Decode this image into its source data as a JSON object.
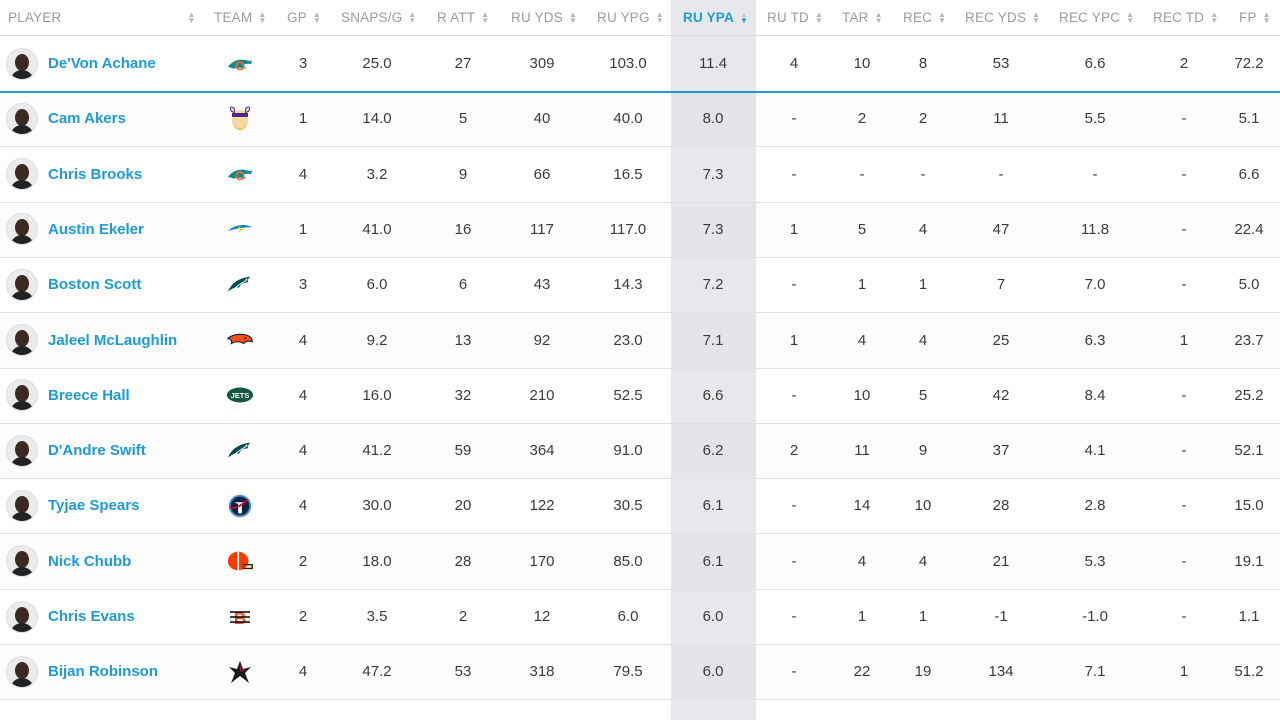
{
  "columns": [
    {
      "key": "player",
      "label": "PLAYER"
    },
    {
      "key": "team",
      "label": "TEAM"
    },
    {
      "key": "gp",
      "label": "GP"
    },
    {
      "key": "snaps",
      "label": "SNAPS/G"
    },
    {
      "key": "ratt",
      "label": "R ATT"
    },
    {
      "key": "ruyds",
      "label": "RU YDS"
    },
    {
      "key": "ruypg",
      "label": "RU YPG"
    },
    {
      "key": "ruypa",
      "label": "RU YPA",
      "active": true
    },
    {
      "key": "rutd",
      "label": "RU TD"
    },
    {
      "key": "tar",
      "label": "TAR"
    },
    {
      "key": "rec",
      "label": "REC"
    },
    {
      "key": "recyds",
      "label": "REC YDS"
    },
    {
      "key": "recypc",
      "label": "REC YPC"
    },
    {
      "key": "rectd",
      "label": "REC TD"
    },
    {
      "key": "fp",
      "label": "FP"
    }
  ],
  "colors": {
    "accent": "#1e9bd7",
    "sorted_bg": "#e6e8eb",
    "text": "#3b3b3b",
    "header_text": "#9b9b9b"
  },
  "rows": [
    {
      "name": "De'Von Achane",
      "team": "dolphins-logo",
      "gp": "3",
      "snaps": "25.0",
      "ratt": "27",
      "ruyds": "309",
      "ruypg": "103.0",
      "ruypa": "11.4",
      "rutd": "4",
      "tar": "10",
      "rec": "8",
      "recyds": "53",
      "recypc": "6.6",
      "rectd": "2",
      "fp": "72.2"
    },
    {
      "name": "Cam Akers",
      "team": "vikings-logo",
      "gp": "1",
      "snaps": "14.0",
      "ratt": "5",
      "ruyds": "40",
      "ruypg": "40.0",
      "ruypa": "8.0",
      "rutd": "-",
      "tar": "2",
      "rec": "2",
      "recyds": "11",
      "recypc": "5.5",
      "rectd": "-",
      "fp": "5.1"
    },
    {
      "name": "Chris Brooks",
      "team": "dolphins-logo",
      "gp": "4",
      "snaps": "3.2",
      "ratt": "9",
      "ruyds": "66",
      "ruypg": "16.5",
      "ruypa": "7.3",
      "rutd": "-",
      "tar": "-",
      "rec": "-",
      "recyds": "-",
      "recypc": "-",
      "rectd": "-",
      "fp": "6.6"
    },
    {
      "name": "Austin Ekeler",
      "team": "chargers-logo",
      "gp": "1",
      "snaps": "41.0",
      "ratt": "16",
      "ruyds": "117",
      "ruypg": "117.0",
      "ruypa": "7.3",
      "rutd": "1",
      "tar": "5",
      "rec": "4",
      "recyds": "47",
      "recypc": "11.8",
      "rectd": "-",
      "fp": "22.4"
    },
    {
      "name": "Boston Scott",
      "team": "eagles-logo",
      "gp": "3",
      "snaps": "6.0",
      "ratt": "6",
      "ruyds": "43",
      "ruypg": "14.3",
      "ruypa": "7.2",
      "rutd": "-",
      "tar": "1",
      "rec": "1",
      "recyds": "7",
      "recypc": "7.0",
      "rectd": "-",
      "fp": "5.0"
    },
    {
      "name": "Jaleel McLaughlin",
      "team": "broncos-logo",
      "gp": "4",
      "snaps": "9.2",
      "ratt": "13",
      "ruyds": "92",
      "ruypg": "23.0",
      "ruypa": "7.1",
      "rutd": "1",
      "tar": "4",
      "rec": "4",
      "recyds": "25",
      "recypc": "6.3",
      "rectd": "1",
      "fp": "23.7"
    },
    {
      "name": "Breece Hall",
      "team": "jets-logo",
      "gp": "4",
      "snaps": "16.0",
      "ratt": "32",
      "ruyds": "210",
      "ruypg": "52.5",
      "ruypa": "6.6",
      "rutd": "-",
      "tar": "10",
      "rec": "5",
      "recyds": "42",
      "recypc": "8.4",
      "rectd": "-",
      "fp": "25.2"
    },
    {
      "name": "D'Andre Swift",
      "team": "eagles-logo",
      "gp": "4",
      "snaps": "41.2",
      "ratt": "59",
      "ruyds": "364",
      "ruypg": "91.0",
      "ruypa": "6.2",
      "rutd": "2",
      "tar": "11",
      "rec": "9",
      "recyds": "37",
      "recypc": "4.1",
      "rectd": "-",
      "fp": "52.1"
    },
    {
      "name": "Tyjae Spears",
      "team": "titans-logo",
      "gp": "4",
      "snaps": "30.0",
      "ratt": "20",
      "ruyds": "122",
      "ruypg": "30.5",
      "ruypa": "6.1",
      "rutd": "-",
      "tar": "14",
      "rec": "10",
      "recyds": "28",
      "recypc": "2.8",
      "rectd": "-",
      "fp": "15.0"
    },
    {
      "name": "Nick Chubb",
      "team": "browns-logo",
      "gp": "2",
      "snaps": "18.0",
      "ratt": "28",
      "ruyds": "170",
      "ruypg": "85.0",
      "ruypa": "6.1",
      "rutd": "-",
      "tar": "4",
      "rec": "4",
      "recyds": "21",
      "recypc": "5.3",
      "rectd": "-",
      "fp": "19.1"
    },
    {
      "name": "Chris Evans",
      "team": "bengals-logo",
      "gp": "2",
      "snaps": "3.5",
      "ratt": "2",
      "ruyds": "12",
      "ruypg": "6.0",
      "ruypa": "6.0",
      "rutd": "-",
      "tar": "1",
      "rec": "1",
      "recyds": "-1",
      "recypc": "-1.0",
      "rectd": "-",
      "fp": "1.1"
    },
    {
      "name": "Bijan Robinson",
      "team": "falcons-logo",
      "gp": "4",
      "snaps": "47.2",
      "ratt": "53",
      "ruyds": "318",
      "ruypg": "79.5",
      "ruypa": "6.0",
      "rutd": "-",
      "tar": "22",
      "rec": "19",
      "recyds": "134",
      "recypc": "7.1",
      "rectd": "1",
      "fp": "51.2"
    }
  ]
}
